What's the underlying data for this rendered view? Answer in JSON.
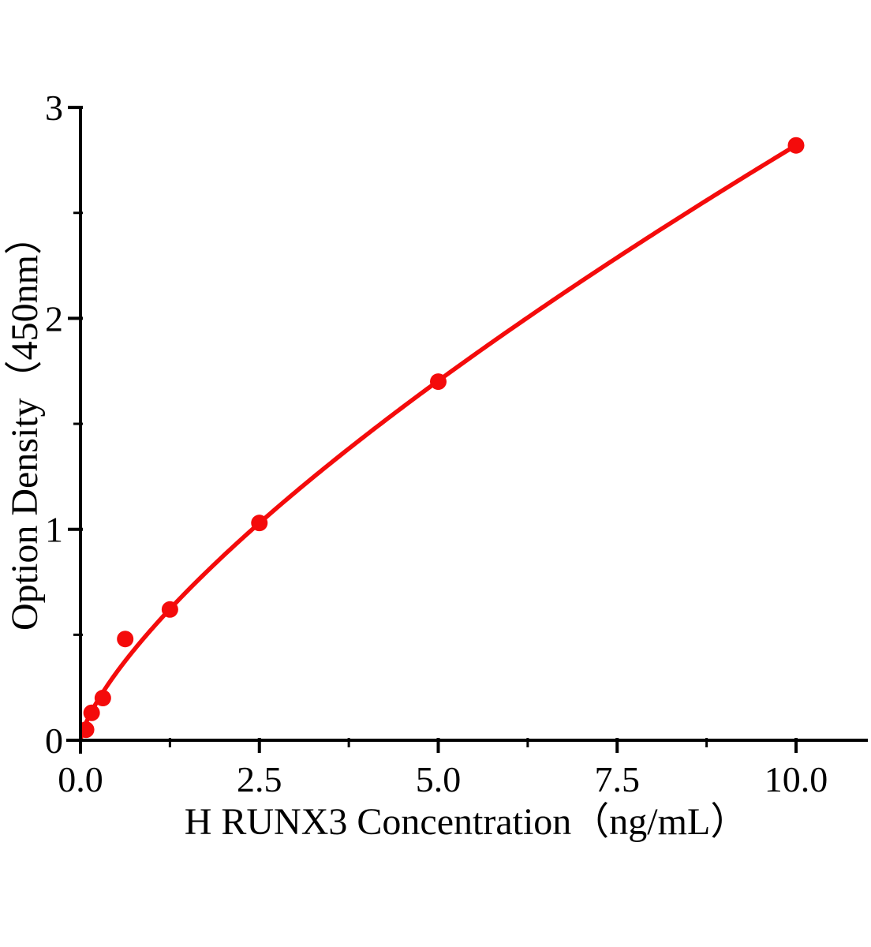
{
  "chart_data": {
    "type": "scatter",
    "subtype": "standard-curve-with-fit-line",
    "title": "",
    "xlabel": "H RUNX3 Concentration（ng/mL）",
    "ylabel": "Option Density（450nm）",
    "x": [
      0.078,
      0.156,
      0.3125,
      0.625,
      1.25,
      2.5,
      5.0,
      10.0
    ],
    "y": [
      0.05,
      0.13,
      0.2,
      0.48,
      0.62,
      1.03,
      1.7,
      2.82
    ],
    "fit": {
      "type": "power",
      "a": 0.5288,
      "b": 0.727,
      "x_start": 0,
      "x_end": 10
    },
    "xlim": [
      0,
      11
    ],
    "ylim": [
      0,
      3
    ],
    "x_major_ticks": [
      0,
      2.5,
      5,
      7.5,
      10
    ],
    "x_tick_labels": [
      "0.0",
      "2.5",
      "5.0",
      "7.5",
      "10.0"
    ],
    "x_minor_ticks": [
      1.25,
      3.75,
      6.25,
      8.75
    ],
    "y_major_ticks": [
      0,
      1,
      2,
      3
    ],
    "y_tick_labels": [
      "0",
      "1",
      "2",
      "3"
    ],
    "y_minor_ticks": [
      0.5,
      1.5,
      2.5
    ],
    "grid": false,
    "legend": null,
    "colors": {
      "curve": "#f40b0b",
      "marker": "#f40b0b",
      "axis": "#000000",
      "text": "#000000",
      "background": "#ffffff"
    }
  }
}
